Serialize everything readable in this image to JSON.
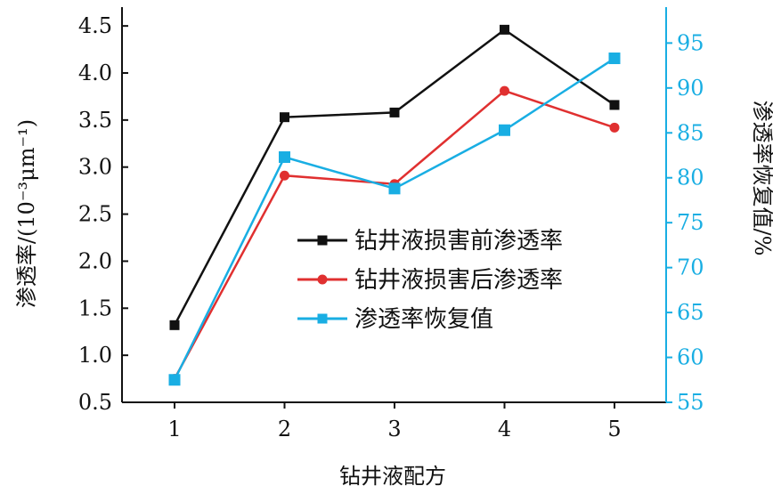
{
  "chart_data": {
    "type": "line",
    "xlabel": "钻井液配方",
    "ylabel_left": "渗透率/(10⁻³μm⁻¹)",
    "ylabel_right": "渗透率恢复值/%",
    "categories": [
      "1",
      "2",
      "3",
      "4",
      "5"
    ],
    "ylim_left": [
      0.5,
      4.7
    ],
    "ylim_right": [
      55,
      99
    ],
    "yticks_left": [
      "0.5",
      "1.0",
      "1.5",
      "2.0",
      "2.5",
      "3.0",
      "3.5",
      "4.0",
      "4.5"
    ],
    "yticks_right": [
      "55",
      "60",
      "65",
      "70",
      "75",
      "80",
      "85",
      "90",
      "95"
    ],
    "series": [
      {
        "name": "钻井液损害前渗透率",
        "axis": "left",
        "color": "#111111",
        "marker": "square",
        "values": [
          1.32,
          3.53,
          3.58,
          4.46,
          3.66
        ]
      },
      {
        "name": "钻井液损害后渗透率",
        "axis": "left",
        "color": "#e03030",
        "marker": "circle",
        "values": [
          0.75,
          2.91,
          2.82,
          3.81,
          3.42
        ]
      },
      {
        "name": "渗透率恢复值",
        "axis": "right",
        "color": "#19aee3",
        "marker": "square",
        "values": [
          57.5,
          82.3,
          78.8,
          85.3,
          93.3
        ]
      }
    ],
    "legend_position": "center-right",
    "grid": false,
    "colors": {
      "left_axis": "#111111",
      "right_axis": "#19aee3"
    }
  }
}
